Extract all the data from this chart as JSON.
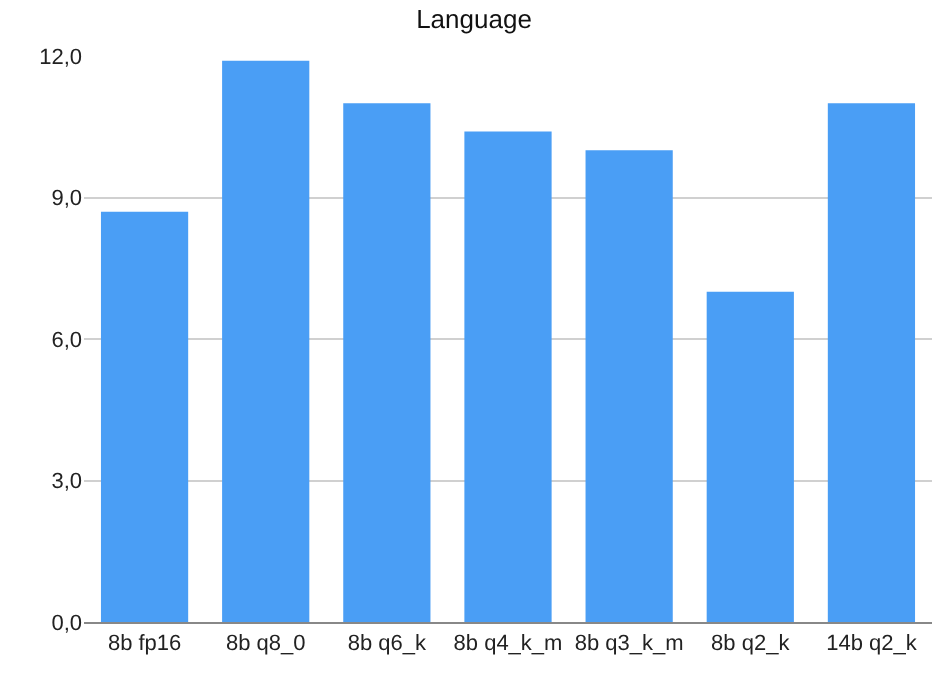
{
  "chart_data": {
    "type": "bar",
    "title": "Language",
    "categories": [
      "8b fp16",
      "8b q8_0",
      "8b q6_k",
      "8b q4_k_m",
      "8b q3_k_m",
      "8b q2_k",
      "14b q2_k"
    ],
    "values": [
      8.7,
      11.9,
      11.0,
      10.4,
      10.0,
      7.0,
      11.0
    ],
    "color": "#4a9ef5",
    "ylim": [
      0,
      12
    ],
    "yticks": [
      {
        "value": 0,
        "label": "0,0"
      },
      {
        "value": 3,
        "label": "3,0"
      },
      {
        "value": 6,
        "label": "6,0"
      },
      {
        "value": 9,
        "label": "9,0"
      },
      {
        "value": 12,
        "label": "12,0"
      }
    ],
    "grid": "y"
  }
}
